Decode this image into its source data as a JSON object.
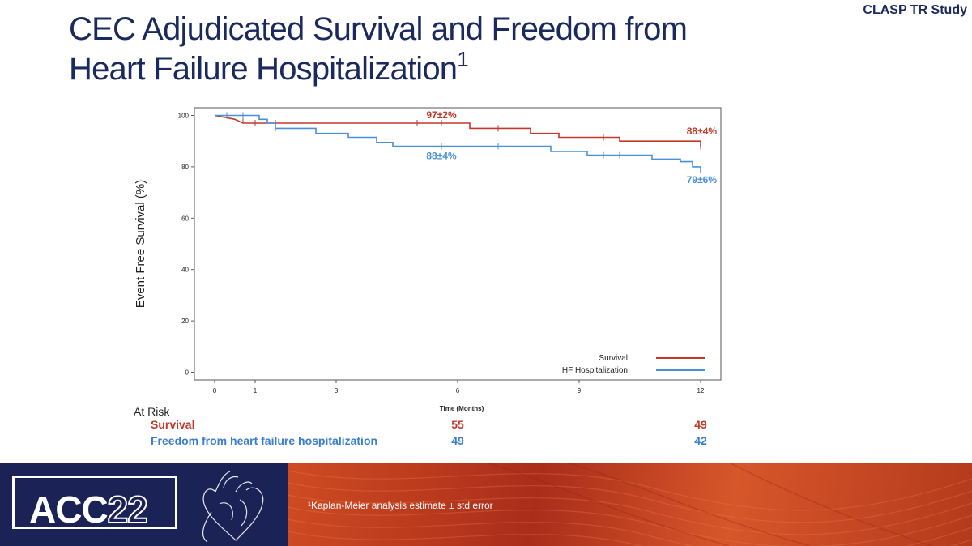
{
  "header": {
    "study_tag": "CLASP TR Study",
    "title_line1": "CEC Adjudicated Survival and Freedom from",
    "title_line2": "Heart Failure Hospitalization",
    "title_superscript": "1"
  },
  "chart_data": {
    "type": "line",
    "step": true,
    "xlabel": "Time (Months)",
    "ylabel": "Event Free Survival (%)",
    "xlim": [
      -0.5,
      12.5
    ],
    "ylim": [
      -3,
      103
    ],
    "x_ticks": [
      0,
      1,
      3,
      6,
      9,
      12
    ],
    "y_ticks": [
      0,
      20,
      40,
      60,
      80,
      100
    ],
    "legend_position": "bottom-right",
    "series": [
      {
        "name": "Survival",
        "color": "#c0392b",
        "points": [
          [
            0,
            100
          ],
          [
            0.5,
            98.5
          ],
          [
            0.7,
            97
          ],
          [
            1.5,
            97
          ],
          [
            6.3,
            97
          ],
          [
            6.3,
            95
          ],
          [
            7.8,
            95
          ],
          [
            7.8,
            93
          ],
          [
            8.5,
            93
          ],
          [
            8.5,
            91.5
          ],
          [
            10.0,
            91.5
          ],
          [
            10.0,
            90
          ],
          [
            12,
            90
          ],
          [
            12,
            88
          ]
        ],
        "censor_marks": [
          [
            0.3,
            100
          ],
          [
            0.7,
            98.5
          ],
          [
            1.0,
            97
          ],
          [
            1.5,
            97
          ],
          [
            5.0,
            97
          ],
          [
            5.6,
            97
          ],
          [
            7.0,
            95
          ],
          [
            9.6,
            91.5
          ],
          [
            12,
            88
          ]
        ]
      },
      {
        "name": "HF Hospitalization",
        "color": "#4a90d9",
        "points": [
          [
            0,
            100
          ],
          [
            1.1,
            100
          ],
          [
            1.1,
            98.5
          ],
          [
            1.3,
            98.5
          ],
          [
            1.3,
            97
          ],
          [
            1.5,
            97
          ],
          [
            1.5,
            95
          ],
          [
            2.5,
            95
          ],
          [
            2.5,
            93
          ],
          [
            3.3,
            93
          ],
          [
            3.3,
            91.5
          ],
          [
            4.0,
            91.5
          ],
          [
            4.0,
            89.5
          ],
          [
            4.4,
            89.5
          ],
          [
            4.4,
            88
          ],
          [
            8.3,
            88
          ],
          [
            8.3,
            86
          ],
          [
            9.2,
            86
          ],
          [
            9.2,
            84.5
          ],
          [
            10.8,
            84.5
          ],
          [
            10.8,
            83
          ],
          [
            11.5,
            83
          ],
          [
            11.5,
            82
          ],
          [
            11.8,
            82
          ],
          [
            11.8,
            80
          ],
          [
            12,
            80
          ],
          [
            12,
            78
          ]
        ],
        "censor_marks": [
          [
            0.3,
            100
          ],
          [
            0.7,
            100
          ],
          [
            0.85,
            100
          ],
          [
            1.5,
            95
          ],
          [
            5.6,
            88
          ],
          [
            7.0,
            88
          ],
          [
            9.6,
            84.5
          ],
          [
            10.0,
            84.5
          ],
          [
            12,
            79
          ]
        ]
      }
    ],
    "annotations": [
      {
        "text": "97±2%",
        "x": 5.6,
        "y": 97,
        "color": "#c0392b"
      },
      {
        "text": "88±4%",
        "x": 5.6,
        "y": 88,
        "color": "#4a90d9"
      },
      {
        "text": "88±4%",
        "x": 12,
        "y": 90,
        "color": "#c0392b"
      },
      {
        "text": "79±6%",
        "x": 12,
        "y": 78,
        "color": "#4a90d9"
      }
    ]
  },
  "at_risk": {
    "heading": "At Risk",
    "rows": [
      {
        "label": "Survival",
        "color": "#c0392b",
        "values": [
          {
            "x": 6,
            "value": "55"
          },
          {
            "x": 12,
            "value": "49"
          }
        ]
      },
      {
        "label": "Freedom from heart failure hospitalization",
        "color": "#3a7dc9",
        "values": [
          {
            "x": 6,
            "value": "49"
          },
          {
            "x": 12,
            "value": "42"
          }
        ]
      }
    ]
  },
  "footer": {
    "logo_prefix": "ACC",
    "logo_year": "22",
    "footnote": "¹Kaplan-Meier analysis estimate ± std error"
  },
  "colors": {
    "title": "#1b2a5e",
    "footer_logo_bg": "#1a2256",
    "footer_band": "#c0421f"
  }
}
